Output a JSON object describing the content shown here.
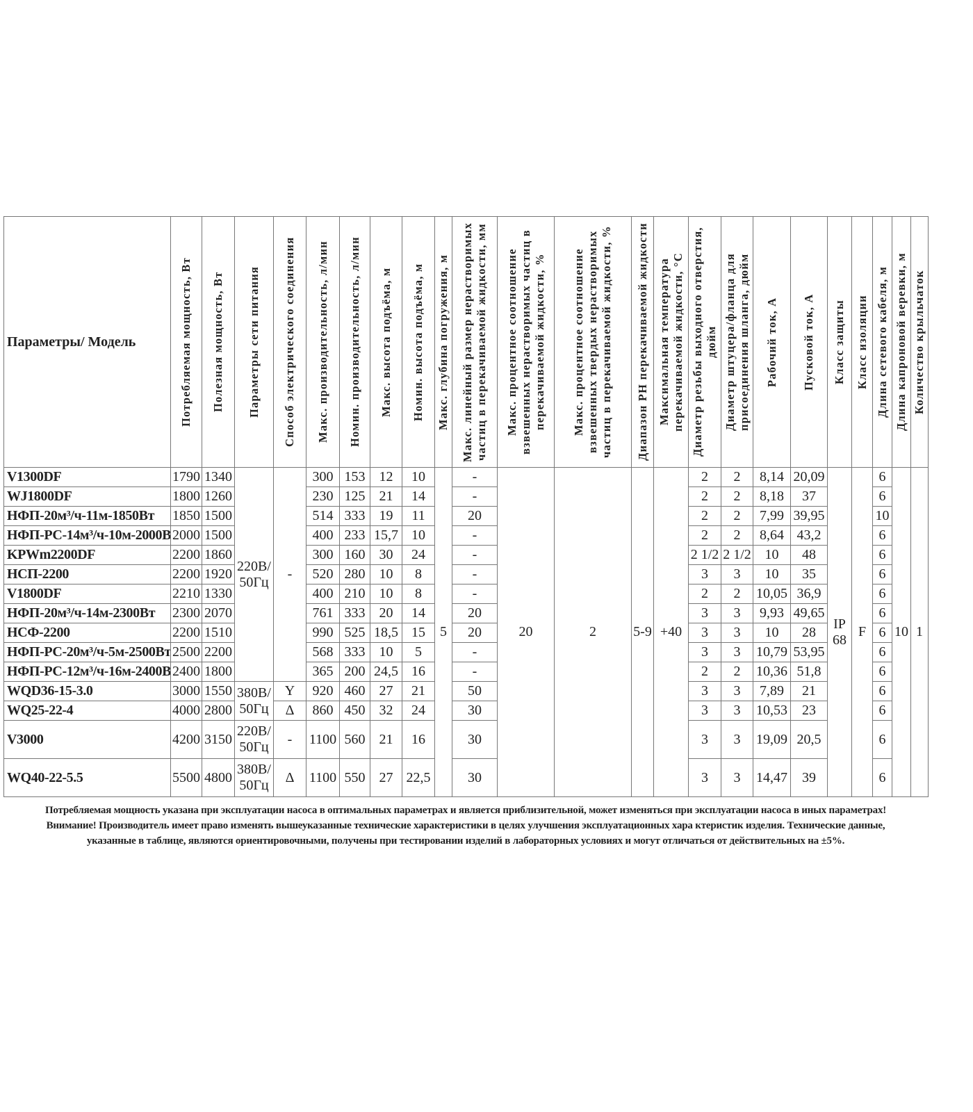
{
  "table": {
    "headers": [
      "Параметры/ Модель",
      "Потребляемая мощность, Вт",
      "Полезная мощность, Вт",
      "Параметры сети питания",
      "Способ электрического соединения",
      "Макс. производительность, л/мин",
      "Номин. производительность, л/мин",
      "Макс. высота подъёма, м",
      "Номин. высота подъёма, м",
      "Макс. глубина погружения, м",
      "Макс. линейный размер нерастворимых частиц в перекачиваемой жидкости, мм",
      "Макс. процентное соотношение взвешенных нерастворимых частиц в перекачиваемой жидкости, %",
      "Макс. процентное соотношение взвешенных твердых нерастворимых частиц в перекачиваемой жидкости, %",
      "Диапазон PH перекачиваемой жидкости",
      "Максимальная температура перекачиваемой жидкости, °С",
      "Диаметр резьбы выходного отверстия, дюйм",
      "Диаметр штуцера/фланца для присоединения шланга, дюйм",
      "Рабочий ток, А",
      "Пусковой ток, А",
      "Класс защиты",
      "Класс изоляции",
      "Длина сетевого кабеля, м",
      "Длина капроновой веревки, м",
      "Количество крыльчаток"
    ],
    "rows": [
      [
        "V1300DF",
        "1790",
        "1340",
        "220В/ 50Гц",
        "-",
        "300",
        "153",
        "12",
        "10",
        "5",
        "-",
        "20",
        "2",
        "5-9",
        "+40",
        "2",
        "2",
        "8,14",
        "20,09",
        "IP 68",
        "F",
        "6",
        "10",
        "1"
      ],
      [
        "WJ1800DF",
        "1800",
        "1260",
        "220В/ 50Гц",
        "-",
        "230",
        "125",
        "21",
        "14",
        "5",
        "-",
        "20",
        "2",
        "5-9",
        "+40",
        "2",
        "2",
        "8,18",
        "37",
        "IP 68",
        "F",
        "6",
        "10",
        "1"
      ],
      [
        "НФП-20м³/ч-11м-1850Вт",
        "1850",
        "1500",
        "220В/ 50Гц",
        "-",
        "514",
        "333",
        "19",
        "11",
        "5",
        "20",
        "20",
        "2",
        "5-9",
        "+40",
        "2",
        "2",
        "7,99",
        "39,95",
        "IP 68",
        "F",
        "10",
        "10",
        "1"
      ],
      [
        "НФП-РС-14м³/ч-10м-2000Вт",
        "2000",
        "1500",
        "220В/ 50Гц",
        "-",
        "400",
        "233",
        "15,7",
        "10",
        "5",
        "-",
        "20",
        "2",
        "5-9",
        "+40",
        "2",
        "2",
        "8,64",
        "43,2",
        "IP 68",
        "F",
        "6",
        "10",
        "1"
      ],
      [
        "KPWm2200DF",
        "2200",
        "1860",
        "220В/ 50Гц",
        "-",
        "300",
        "160",
        "30",
        "24",
        "5",
        "-",
        "20",
        "2",
        "5-9",
        "+40",
        "2 1/2",
        "2 1/2",
        "10",
        "48",
        "IP 68",
        "F",
        "6",
        "10",
        "1"
      ],
      [
        "НСП-2200",
        "2200",
        "1920",
        "220В/ 50Гц",
        "-",
        "520",
        "280",
        "10",
        "8",
        "5",
        "-",
        "20",
        "2",
        "5-9",
        "+40",
        "3",
        "3",
        "10",
        "35",
        "IP 68",
        "F",
        "6",
        "10",
        "1"
      ],
      [
        "V1800DF",
        "2210",
        "1330",
        "220В/ 50Гц",
        "-",
        "400",
        "210",
        "10",
        "8",
        "5",
        "-",
        "20",
        "2",
        "5-9",
        "+40",
        "2",
        "2",
        "10,05",
        "36,9",
        "IP 68",
        "F",
        "6",
        "10",
        "1"
      ],
      [
        "НФП-20м³/ч-14м-2300Вт",
        "2300",
        "2070",
        "220В/ 50Гц",
        "-",
        "761",
        "333",
        "20",
        "14",
        "5",
        "20",
        "20",
        "2",
        "5-9",
        "+40",
        "3",
        "3",
        "9,93",
        "49,65",
        "IP 68",
        "F",
        "6",
        "10",
        "1"
      ],
      [
        "НСФ-2200",
        "2200",
        "1510",
        "220В/ 50Гц",
        "-",
        "990",
        "525",
        "18,5",
        "15",
        "5",
        "20",
        "20",
        "2",
        "5-9",
        "+40",
        "3",
        "3",
        "10",
        "28",
        "IP 68",
        "F",
        "6",
        "10",
        "1"
      ],
      [
        "НФП-РС-20м³/ч-5м-2500Вт",
        "2500",
        "2200",
        "220В/ 50Гц",
        "-",
        "568",
        "333",
        "10",
        "5",
        "5",
        "-",
        "20",
        "2",
        "5-9",
        "+40",
        "3",
        "3",
        "10,79",
        "53,95",
        "IP 68",
        "F",
        "6",
        "10",
        "1"
      ],
      [
        "НФП-РС-12м³/ч-16м-2400Вт",
        "2400",
        "1800",
        "220В/ 50Гц",
        "-",
        "365",
        "200",
        "24,5",
        "16",
        "5",
        "-",
        "20",
        "2",
        "5-9",
        "+40",
        "2",
        "2",
        "10,36",
        "51,8",
        "IP 68",
        "F",
        "6",
        "10",
        "1"
      ],
      [
        "WQD36-15-3.0",
        "3000",
        "1550",
        "380В/ 50Гц",
        "Y",
        "920",
        "460",
        "27",
        "21",
        "5",
        "50",
        "20",
        "2",
        "5-9",
        "+40",
        "3",
        "3",
        "7,89",
        "21",
        "IP 68",
        "F",
        "6",
        "10",
        "1"
      ],
      [
        "WQ25-22-4",
        "4000",
        "2800",
        "380В/ 50Гц",
        "Δ",
        "860",
        "450",
        "32",
        "24",
        "5",
        "30",
        "20",
        "2",
        "5-9",
        "+40",
        "3",
        "3",
        "10,53",
        "23",
        "IP 68",
        "F",
        "6",
        "10",
        "1"
      ],
      [
        "V3000",
        "4200",
        "3150",
        "220В/ 50Гц",
        "-",
        "1100",
        "560",
        "21",
        "16",
        "5",
        "30",
        "20",
        "2",
        "5-9",
        "+40",
        "3",
        "3",
        "19,09",
        "20,5",
        "IP 68",
        "F",
        "6",
        "10",
        "1"
      ],
      [
        "WQ40-22-5.5",
        "5500",
        "4800",
        "380В/ 50Гц",
        "Δ",
        "1100",
        "550",
        "27",
        "22,5",
        "5",
        "30",
        "20",
        "2",
        "5-9",
        "+40",
        "3",
        "3",
        "14,47",
        "39",
        "IP 68",
        "F",
        "6",
        "10",
        "1"
      ]
    ]
  },
  "footer": {
    "lines": [
      "Потребляемая мощность указана при эксплуатации насоса в оптимальных параметрах и является  приблизительной, может изменяться при эксплуатации насоса в иных параметрах!",
      "Внимание! Производитель имеет право изменять вышеуказанные технические характеристики в целях улучшения эксплуатационных хара ктеристик изделия. Технические данные,",
      "указанные в таблице, являются ориентировочными, получены при тестировании изделий в лабораторных условиях и   могут отличаться от действительных на ±5%."
    ]
  }
}
